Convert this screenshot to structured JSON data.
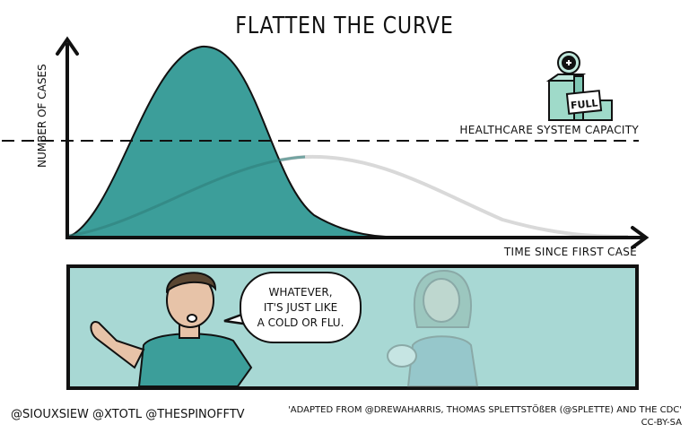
{
  "title": "FLATTEN THE CURVE",
  "axes": {
    "y_label": "NUMBER OF CASES",
    "x_label": "TIME SINCE FIRST CASE"
  },
  "capacity_label": "HEALTHCARE SYSTEM CAPACITY",
  "hospital_sign": "FULL",
  "colors": {
    "peak_curve": "#3c9e9a",
    "flat_curve": "#d9d9d9",
    "panel_bg": "#a8d8d4",
    "hospital": "#9fdac9"
  },
  "speech_bubble": {
    "lines": [
      "WHATEVER,",
      "IT'S JUST LIKE",
      "A COLD OR FLU."
    ]
  },
  "footer": {
    "handles": "@SIOUXSIEW @XTOTL @THESPINOFFTV",
    "attribution": "'ADAPTED FROM @DREWAHARRIS, THOMAS SPLETTSTÖßER (@SPLETTE) AND THE CDC'",
    "license": "CC-BY-SA"
  }
}
